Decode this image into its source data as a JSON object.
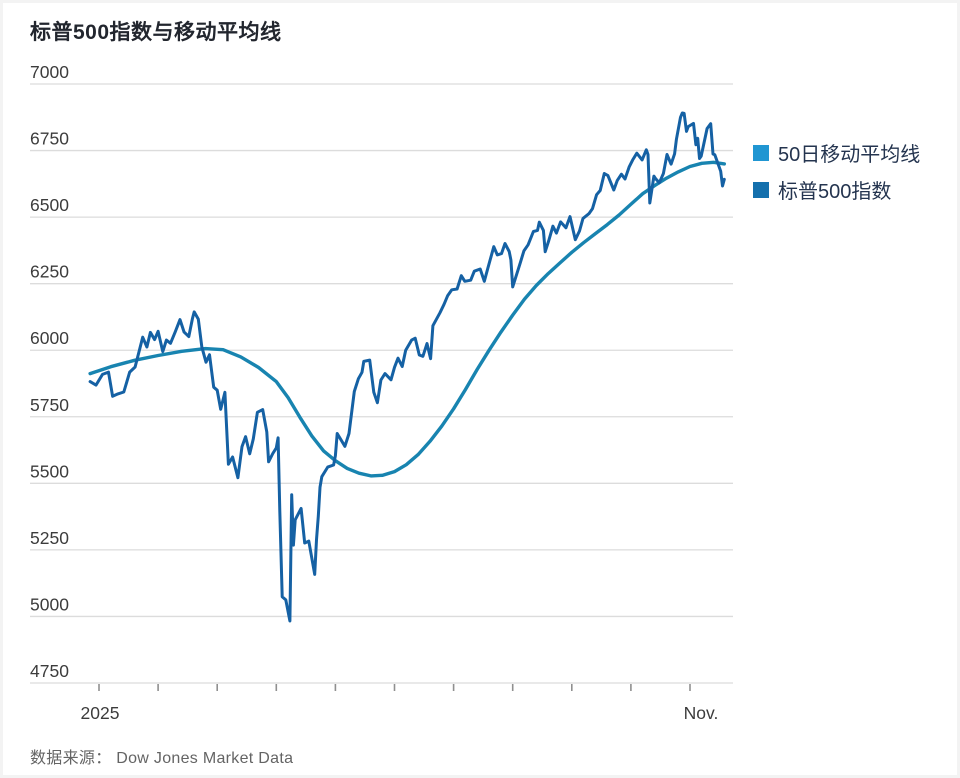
{
  "title": "标普500指数与移动平均线",
  "source": "数据来源： Dow Jones Market Data",
  "legend": [
    {
      "label": "50日移动平均线",
      "color": "#2096d2"
    },
    {
      "label": "标普500指数",
      "color": "#1470ad"
    }
  ],
  "colors": {
    "grid": "#dcdcdc",
    "axis_tick": "#8f8f8f",
    "axis_label": "#3c3c3c",
    "ma_line": "#1884b0",
    "index_line": "#1561a4"
  },
  "chart_data": {
    "type": "line",
    "title": "标普500指数与移动平均线",
    "xlabel": "",
    "ylabel": "",
    "x_unit": "months since Jan 2025 (0 = Jan tick, 10 = Nov tick)",
    "x_axis": {
      "tick_count": 11,
      "tick_months": [
        "Jan",
        "Feb",
        "Mar",
        "Apr",
        "May",
        "Jun",
        "Jul",
        "Aug",
        "Sep",
        "Oct",
        "Nov"
      ],
      "labels": [
        {
          "tick": 0,
          "text": "2025"
        },
        {
          "tick": 10,
          "text": "Nov."
        }
      ]
    },
    "y_axis": {
      "ticks": [
        7000,
        6750,
        6500,
        6250,
        6000,
        5750,
        5500,
        5250,
        5000,
        4750
      ],
      "range": [
        4750,
        7000
      ],
      "grid": true
    },
    "legend_position": "right",
    "series": [
      {
        "name": "50日移动平均线",
        "color": "#1884b0",
        "width": 3.4,
        "points": [
          [
            -0.15,
            5912
          ],
          [
            0.2,
            5938
          ],
          [
            0.6,
            5962
          ],
          [
            1.0,
            5980
          ],
          [
            1.4,
            5996
          ],
          [
            1.8,
            6006
          ],
          [
            2.1,
            6002
          ],
          [
            2.4,
            5975
          ],
          [
            2.7,
            5935
          ],
          [
            3.0,
            5882
          ],
          [
            3.2,
            5822
          ],
          [
            3.4,
            5748
          ],
          [
            3.6,
            5678
          ],
          [
            3.8,
            5622
          ],
          [
            4.0,
            5585
          ],
          [
            4.2,
            5556
          ],
          [
            4.4,
            5538
          ],
          [
            4.6,
            5528
          ],
          [
            4.8,
            5530
          ],
          [
            5.0,
            5544
          ],
          [
            5.2,
            5570
          ],
          [
            5.4,
            5608
          ],
          [
            5.6,
            5658
          ],
          [
            5.8,
            5715
          ],
          [
            6.0,
            5780
          ],
          [
            6.2,
            5852
          ],
          [
            6.4,
            5928
          ],
          [
            6.6,
            6000
          ],
          [
            6.8,
            6068
          ],
          [
            7.0,
            6132
          ],
          [
            7.2,
            6192
          ],
          [
            7.4,
            6243
          ],
          [
            7.6,
            6288
          ],
          [
            7.8,
            6328
          ],
          [
            8.0,
            6368
          ],
          [
            8.2,
            6404
          ],
          [
            8.4,
            6438
          ],
          [
            8.6,
            6472
          ],
          [
            8.8,
            6508
          ],
          [
            9.0,
            6548
          ],
          [
            9.2,
            6588
          ],
          [
            9.4,
            6618
          ],
          [
            9.6,
            6646
          ],
          [
            9.8,
            6670
          ],
          [
            10.0,
            6690
          ],
          [
            10.2,
            6702
          ],
          [
            10.4,
            6706
          ],
          [
            10.58,
            6700
          ]
        ]
      },
      {
        "name": "标普500指数",
        "color": "#1561a4",
        "width": 3,
        "points": [
          [
            -0.15,
            5882
          ],
          [
            -0.05,
            5869
          ],
          [
            0.06,
            5909
          ],
          [
            0.16,
            5918
          ],
          [
            0.23,
            5827
          ],
          [
            0.32,
            5836
          ],
          [
            0.42,
            5843
          ],
          [
            0.52,
            5918
          ],
          [
            0.61,
            5937
          ],
          [
            0.68,
            5997
          ],
          [
            0.74,
            6049
          ],
          [
            0.81,
            6012
          ],
          [
            0.87,
            6067
          ],
          [
            0.94,
            6040
          ],
          [
            1.0,
            6071
          ],
          [
            1.08,
            5995
          ],
          [
            1.14,
            6038
          ],
          [
            1.21,
            6026
          ],
          [
            1.29,
            6069
          ],
          [
            1.37,
            6115
          ],
          [
            1.44,
            6068
          ],
          [
            1.52,
            6051
          ],
          [
            1.58,
            6118
          ],
          [
            1.61,
            6144
          ],
          [
            1.68,
            6117
          ],
          [
            1.74,
            6013
          ],
          [
            1.81,
            5955
          ],
          [
            1.87,
            5983
          ],
          [
            1.94,
            5861
          ],
          [
            2.0,
            5850
          ],
          [
            2.06,
            5778
          ],
          [
            2.13,
            5842
          ],
          [
            2.19,
            5572
          ],
          [
            2.26,
            5599
          ],
          [
            2.35,
            5521
          ],
          [
            2.42,
            5638
          ],
          [
            2.48,
            5675
          ],
          [
            2.55,
            5611
          ],
          [
            2.61,
            5667
          ],
          [
            2.68,
            5767
          ],
          [
            2.77,
            5777
          ],
          [
            2.84,
            5693
          ],
          [
            2.87,
            5581
          ],
          [
            2.94,
            5612
          ],
          [
            3.0,
            5633
          ],
          [
            3.03,
            5671
          ],
          [
            3.06,
            5396
          ],
          [
            3.1,
            5074
          ],
          [
            3.16,
            5062
          ],
          [
            3.23,
            4983
          ],
          [
            3.26,
            5457
          ],
          [
            3.29,
            5268
          ],
          [
            3.32,
            5363
          ],
          [
            3.42,
            5406
          ],
          [
            3.48,
            5276
          ],
          [
            3.55,
            5283
          ],
          [
            3.65,
            5158
          ],
          [
            3.68,
            5288
          ],
          [
            3.71,
            5376
          ],
          [
            3.74,
            5485
          ],
          [
            3.77,
            5525
          ],
          [
            3.87,
            5561
          ],
          [
            3.97,
            5569
          ],
          [
            4.0,
            5604
          ],
          [
            4.03,
            5687
          ],
          [
            4.16,
            5639
          ],
          [
            4.23,
            5687
          ],
          [
            4.32,
            5845
          ],
          [
            4.39,
            5893
          ],
          [
            4.45,
            5917
          ],
          [
            4.48,
            5958
          ],
          [
            4.58,
            5963
          ],
          [
            4.65,
            5842
          ],
          [
            4.71,
            5803
          ],
          [
            4.77,
            5888
          ],
          [
            4.84,
            5912
          ],
          [
            4.94,
            5889
          ],
          [
            5.0,
            5936
          ],
          [
            5.06,
            5970
          ],
          [
            5.13,
            5939
          ],
          [
            5.19,
            6000
          ],
          [
            5.29,
            6038
          ],
          [
            5.35,
            6045
          ],
          [
            5.42,
            5982
          ],
          [
            5.48,
            5977
          ],
          [
            5.55,
            6025
          ],
          [
            5.61,
            5968
          ],
          [
            5.65,
            6092
          ],
          [
            5.77,
            6141
          ],
          [
            5.84,
            6173
          ],
          [
            5.9,
            6205
          ],
          [
            5.97,
            6227
          ],
          [
            6.06,
            6230
          ],
          [
            6.13,
            6280
          ],
          [
            6.19,
            6259
          ],
          [
            6.29,
            6263
          ],
          [
            6.35,
            6297
          ],
          [
            6.45,
            6305
          ],
          [
            6.52,
            6259
          ],
          [
            6.58,
            6309
          ],
          [
            6.68,
            6389
          ],
          [
            6.74,
            6358
          ],
          [
            6.81,
            6363
          ],
          [
            6.87,
            6401
          ],
          [
            6.94,
            6371
          ],
          [
            6.97,
            6339
          ],
          [
            7.0,
            6238
          ],
          [
            7.13,
            6330
          ],
          [
            7.19,
            6373
          ],
          [
            7.26,
            6396
          ],
          [
            7.35,
            6446
          ],
          [
            7.42,
            6450
          ],
          [
            7.45,
            6481
          ],
          [
            7.52,
            6450
          ],
          [
            7.55,
            6370
          ],
          [
            7.61,
            6412
          ],
          [
            7.68,
            6466
          ],
          [
            7.74,
            6440
          ],
          [
            7.81,
            6482
          ],
          [
            7.9,
            6460
          ],
          [
            7.97,
            6502
          ],
          [
            8.06,
            6415
          ],
          [
            8.13,
            6448
          ],
          [
            8.19,
            6495
          ],
          [
            8.29,
            6513
          ],
          [
            8.35,
            6532
          ],
          [
            8.42,
            6584
          ],
          [
            8.48,
            6600
          ],
          [
            8.55,
            6664
          ],
          [
            8.61,
            6656
          ],
          [
            8.71,
            6602
          ],
          [
            8.77,
            6638
          ],
          [
            8.84,
            6661
          ],
          [
            8.9,
            6643
          ],
          [
            8.97,
            6688
          ],
          [
            9.03,
            6715
          ],
          [
            9.1,
            6740
          ],
          [
            9.19,
            6715
          ],
          [
            9.26,
            6753
          ],
          [
            9.29,
            6735
          ],
          [
            9.32,
            6553
          ],
          [
            9.39,
            6654
          ],
          [
            9.42,
            6644
          ],
          [
            9.48,
            6629
          ],
          [
            9.55,
            6664
          ],
          [
            9.61,
            6735
          ],
          [
            9.68,
            6699
          ],
          [
            9.74,
            6738
          ],
          [
            9.77,
            6792
          ],
          [
            9.84,
            6875
          ],
          [
            9.87,
            6891
          ],
          [
            9.9,
            6890
          ],
          [
            9.94,
            6822
          ],
          [
            9.97,
            6840
          ],
          [
            10.06,
            6852
          ],
          [
            10.1,
            6772
          ],
          [
            10.13,
            6796
          ],
          [
            10.16,
            6720
          ],
          [
            10.19,
            6729
          ],
          [
            10.29,
            6833
          ],
          [
            10.35,
            6851
          ],
          [
            10.39,
            6737
          ],
          [
            10.42,
            6734
          ],
          [
            10.52,
            6672
          ],
          [
            10.55,
            6617
          ],
          [
            10.58,
            6642
          ]
        ]
      }
    ]
  }
}
